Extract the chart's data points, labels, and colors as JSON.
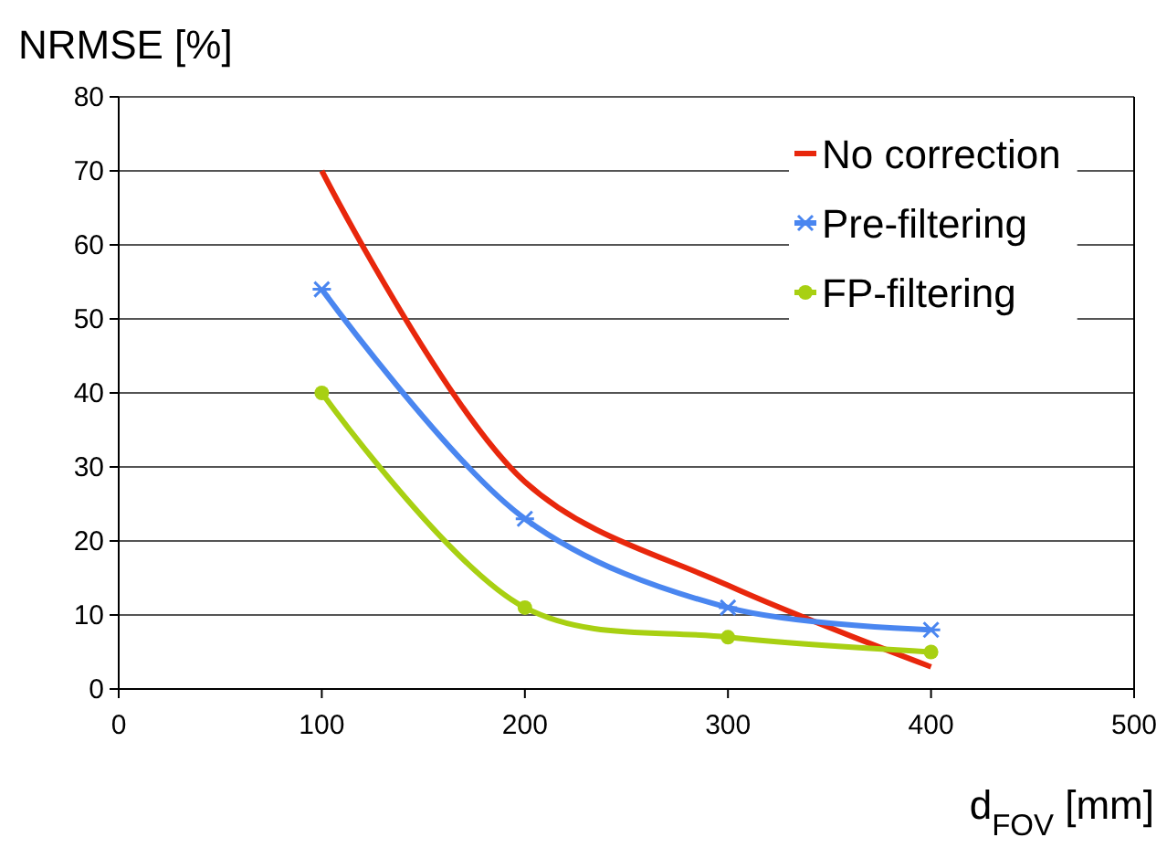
{
  "chart_data": {
    "type": "line",
    "xlabel": "d$_{FOV}$ [mm]",
    "ylabel": "NRMSE [%]",
    "x": [
      100,
      200,
      300,
      400
    ],
    "series": [
      {
        "name": "No correction",
        "color": "#e8270c",
        "marker": "none",
        "values": [
          70,
          28,
          14,
          3
        ]
      },
      {
        "name": "Pre-filtering",
        "color": "#4a86f0",
        "marker": "cross",
        "values": [
          54,
          23,
          11,
          8
        ]
      },
      {
        "name": "FP-filtering",
        "color": "#a8d012",
        "marker": "circle",
        "values": [
          40,
          11,
          7,
          5
        ]
      }
    ],
    "xlim": [
      0,
      500
    ],
    "xticks": [
      0,
      100,
      200,
      300,
      400,
      500
    ],
    "ylim": [
      0,
      80
    ],
    "yticks": [
      0,
      10,
      20,
      30,
      40,
      50,
      60,
      70,
      80
    ],
    "grid": "y",
    "legend": "top right",
    "line_style": "solid"
  }
}
